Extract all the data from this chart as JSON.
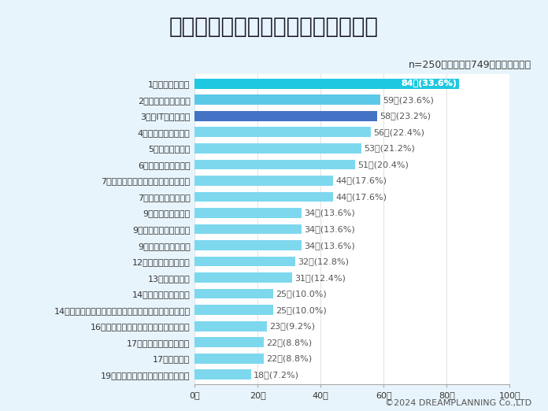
{
  "title": "戦後日本の教育における問題点は？",
  "subtitle": "n=250　（回答数749・複数回答可）",
  "footer": "©2024 DREAMPLANNING Co.,LTD",
  "categories": [
    "1位：教員の過労",
    "2位：いじめの深刻化",
    "3位：IT教育の遅れ",
    "4位：英語教育の遅れ",
    "5位：ゆとり教育",
    "6位：金融教育の遅れ",
    "7位：教育の画一化による個性の否定",
    "7位：保護者の過干渉",
    "9位：詰め込み教育",
    "9位：保護者の学校依存",
    "9位：実社会との乖離",
    "12位：道徳教育の不備",
    "13位：学力格差",
    "14位：受験競争の過熱",
    "14位：日本の伝統文化や価値観を伝える教育機会の不足",
    "16位：歴史教育の偏向、過剰な反日教育",
    "17位：多文化教育の遅れ",
    "17位：その他",
    "19位：少子化による教育資源の偏在"
  ],
  "values": [
    84,
    59,
    58,
    56,
    53,
    51,
    44,
    44,
    34,
    34,
    34,
    32,
    31,
    25,
    25,
    23,
    22,
    22,
    18
  ],
  "labels": [
    "84人(33.6%)",
    "59人(23.6%)",
    "58人(23.2%)",
    "56人(22.4%)",
    "53人(21.2%)",
    "51人(20.4%)",
    "44人(17.6%)",
    "44人(17.6%)",
    "34人(13.6%)",
    "34人(13.6%)",
    "34人(13.6%)",
    "32人(12.8%)",
    "31人(12.4%)",
    "25人(10.0%)",
    "25人(10.0%)",
    "23人(9.2%)",
    "22人(8.8%)",
    "22人(8.8%)",
    "18人(7.2%)"
  ],
  "bar_colors": [
    "#1EC8E0",
    "#5BC8E8",
    "#4472C4",
    "#7DD8EE",
    "#7DD8EE",
    "#7DD8EE",
    "#7DD8EE",
    "#7DD8EE",
    "#7DD8EE",
    "#7DD8EE",
    "#7DD8EE",
    "#7DD8EE",
    "#7DD8EE",
    "#7DD8EE",
    "#7DD8EE",
    "#7DD8EE",
    "#7DD8EE",
    "#7DD8EE",
    "#7DD8EE"
  ],
  "label1_color": "#ffffff",
  "label1_bg": "#1EC8E0",
  "label_color": "#555555",
  "xlim": [
    0,
    100
  ],
  "xticks": [
    0,
    20,
    40,
    60,
    80,
    100
  ],
  "xtick_labels": [
    "0人",
    "20人",
    "40人",
    "60人",
    "80人",
    "100人"
  ],
  "title_bg_color": "#cfe2f3",
  "bg_color": "#e8f4fb",
  "plot_bg_color": "#ffffff",
  "title_fontsize": 20,
  "subtitle_fontsize": 9,
  "footer_fontsize": 8,
  "label_fontsize": 8,
  "tick_fontsize": 8,
  "category_fontsize": 8
}
